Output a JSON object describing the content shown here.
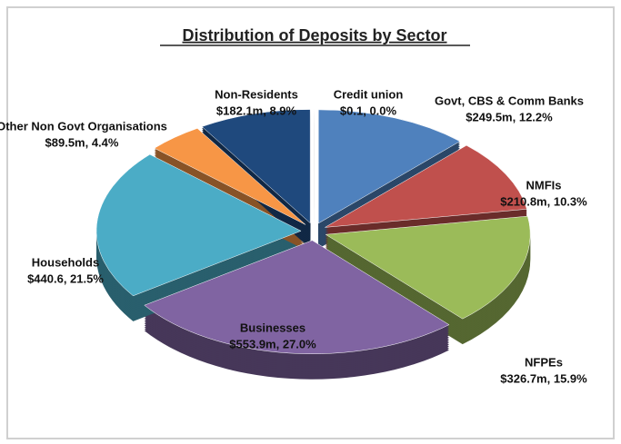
{
  "chart_data": {
    "type": "pie",
    "title": "Distribution of Deposits by Sector",
    "categories": [
      "Credit union",
      "Govt, CBS & Comm Banks",
      "NMFIs",
      "NFPEs",
      "Businesses",
      "Households",
      "Other Non Govt Organisations",
      "Non-Residents"
    ],
    "values": [
      0.1,
      249.5,
      210.8,
      326.7,
      553.9,
      440.6,
      89.5,
      182.1
    ],
    "value_labels": [
      "$0.1, 0.0%",
      "$249.5m, 12.2%",
      "$210.8m, 10.3%",
      "$326.7m, 15.9%",
      "$553.9m, 27.0%",
      "$440.6, 21.5%",
      "$89.5m, 4.4%",
      "$182.1m, 8.9%"
    ],
    "colors": [
      "#7f7f7f",
      "#4f81bd",
      "#c0504d",
      "#9bbb59",
      "#8064a2",
      "#4bacc6",
      "#f79646",
      "#1f497d"
    ]
  }
}
